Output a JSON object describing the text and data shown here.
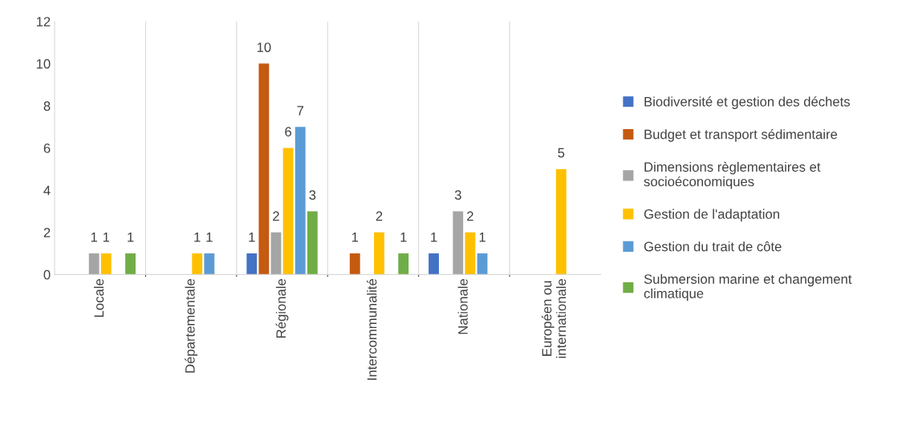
{
  "chart_data": {
    "type": "bar",
    "categories": [
      "Locale",
      "Départementale",
      "Régionale",
      "Intercommunalité",
      "Nationale",
      "Européen ou\ninternationale"
    ],
    "series": [
      {
        "name": "Biodiversité et gestion des déchets",
        "color": "#4472c4",
        "values": [
          null,
          null,
          1,
          null,
          1,
          null
        ]
      },
      {
        "name": "Budget et transport sédimentaire",
        "color": "#c55a11",
        "values": [
          null,
          null,
          10,
          1,
          null,
          null
        ]
      },
      {
        "name": "Dimensions règlementaires et\nsocioéconomiques",
        "color": "#a5a5a5",
        "values": [
          1,
          null,
          2,
          null,
          3,
          null
        ]
      },
      {
        "name": "Gestion de l'adaptation",
        "color": "#ffc000",
        "values": [
          1,
          1,
          6,
          2,
          2,
          5
        ]
      },
      {
        "name": "Gestion du trait de côte",
        "color": "#5b9bd5",
        "values": [
          null,
          1,
          7,
          null,
          1,
          null
        ]
      },
      {
        "name": "Submersion marine et changement\nclimatique",
        "color": "#70ad47",
        "values": [
          1,
          null,
          3,
          1,
          null,
          null
        ]
      }
    ],
    "ylim": [
      0,
      12
    ],
    "yticks": [
      0,
      2,
      4,
      6,
      8,
      10,
      12
    ],
    "grid": "x",
    "legend": "right",
    "data_labels": true
  }
}
